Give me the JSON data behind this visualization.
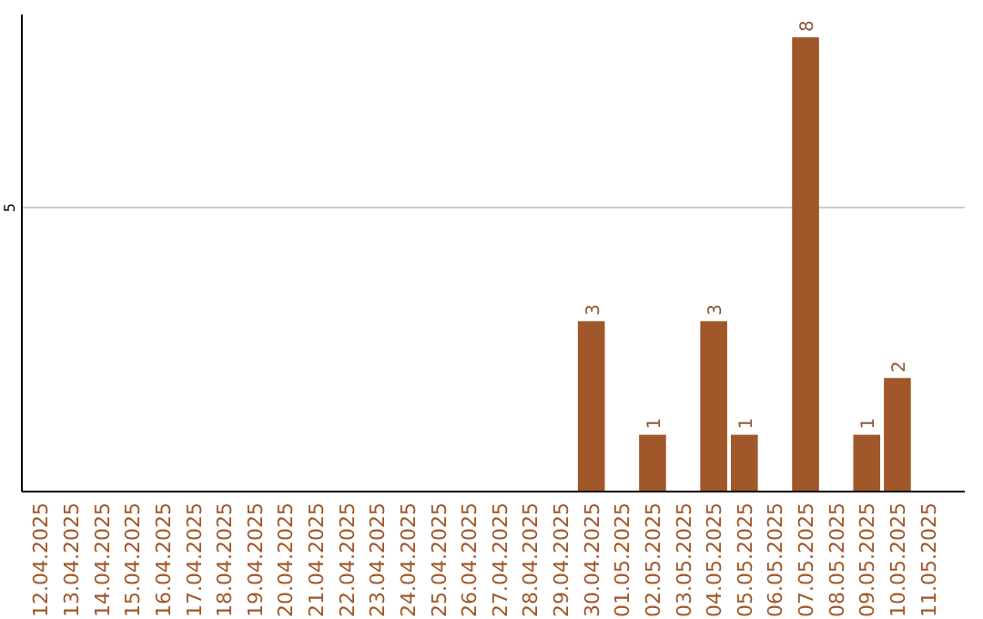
{
  "chart_data": {
    "type": "bar",
    "categories": [
      "12.04.2025",
      "13.04.2025",
      "14.04.2025",
      "15.04.2025",
      "16.04.2025",
      "17.04.2025",
      "18.04.2025",
      "19.04.2025",
      "20.04.2025",
      "21.04.2025",
      "22.04.2025",
      "23.04.2025",
      "24.04.2025",
      "25.04.2025",
      "26.04.2025",
      "27.04.2025",
      "28.04.2025",
      "29.04.2025",
      "30.04.2025",
      "01.05.2025",
      "02.05.2025",
      "03.05.2025",
      "04.05.2025",
      "05.05.2025",
      "06.05.2025",
      "07.05.2025",
      "08.05.2025",
      "09.05.2025",
      "10.05.2025",
      "11.05.2025"
    ],
    "values": [
      null,
      null,
      null,
      null,
      null,
      null,
      null,
      null,
      null,
      null,
      null,
      null,
      null,
      null,
      null,
      null,
      null,
      null,
      3,
      null,
      1,
      null,
      3,
      1,
      null,
      8,
      null,
      1,
      2,
      null
    ],
    "color": "#a0582a",
    "ylim": [
      0,
      8.4
    ],
    "yticks": [
      5
    ],
    "grid": "y",
    "data_labels": true
  }
}
